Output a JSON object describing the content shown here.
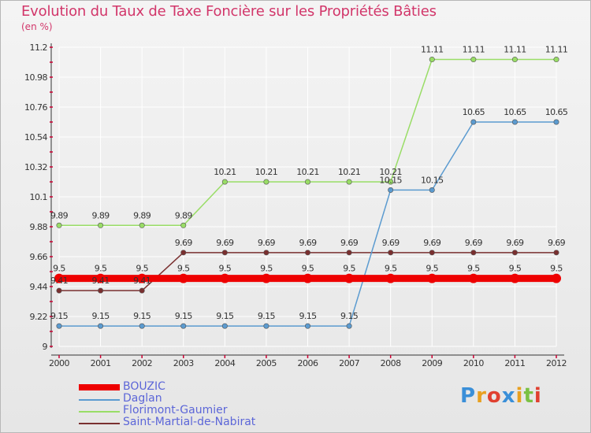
{
  "colors": {
    "title": "#d2366a",
    "legend_text": "#5c66d8",
    "axis": "#333333",
    "tick": "#cc0033",
    "grid": "#ffffff"
  },
  "chart_data": {
    "type": "line",
    "title": "Evolution du Taux de Taxe Foncière sur les Propriétés Bâties",
    "unit_label": "(en %)",
    "x": [
      "2000",
      "2001",
      "2002",
      "2003",
      "2004",
      "2005",
      "2006",
      "2007",
      "2008",
      "2009",
      "2010",
      "2011",
      "2012"
    ],
    "ylim": [
      9,
      11.2
    ],
    "yticks": [
      "9",
      "9.22",
      "9.44",
      "9.66",
      "9.88",
      "10.1",
      "10.32",
      "10.54",
      "10.76",
      "10.98",
      "11.2"
    ],
    "series": [
      {
        "name": "BOUZIC",
        "color": "#ee0000",
        "width": 9,
        "values": [
          9.5,
          9.5,
          9.5,
          9.5,
          9.5,
          9.5,
          9.5,
          9.5,
          9.5,
          9.5,
          9.5,
          9.5,
          9.5
        ],
        "labels": [
          "9.5",
          "9.5",
          "9.5",
          "9.5",
          "9.5",
          "9.5",
          "9.5",
          "9.5",
          "9.5",
          "9.5",
          "9.5",
          "9.5",
          "9.5"
        ]
      },
      {
        "name": "Daglan",
        "color": "#5b9bd0",
        "width": 1.5,
        "values": [
          9.15,
          9.15,
          9.15,
          9.15,
          9.15,
          9.15,
          9.15,
          9.15,
          10.15,
          10.15,
          10.65,
          10.65,
          10.65
        ],
        "labels": [
          "9.15",
          "9.15",
          "9.15",
          "9.15",
          "9.15",
          "9.15",
          "9.15",
          "9.15",
          "10.15",
          "10.15",
          "10.65",
          "10.65",
          "10.65"
        ]
      },
      {
        "name": "Florimont-Gaumier",
        "color": "#99dd66",
        "width": 1.5,
        "values": [
          9.89,
          9.89,
          9.89,
          9.89,
          10.21,
          10.21,
          10.21,
          10.21,
          10.21,
          11.11,
          11.11,
          11.11,
          11.11
        ],
        "labels": [
          "9.89",
          "9.89",
          "9.89",
          "9.89",
          "10.21",
          "10.21",
          "10.21",
          "10.21",
          "10.21",
          "11.11",
          "11.11",
          "11.11",
          "11.11"
        ]
      },
      {
        "name": "Saint-Martial-de-Nabirat",
        "color": "#7a3030",
        "width": 1.5,
        "values": [
          9.41,
          9.41,
          9.41,
          9.69,
          9.69,
          9.69,
          9.69,
          9.69,
          9.69,
          9.69,
          9.69,
          9.69,
          9.69
        ],
        "labels": [
          "9.41",
          "9.41",
          "9.41",
          "9.69",
          "9.69",
          "9.69",
          "9.69",
          "9.69",
          "9.69",
          "9.69",
          "9.69",
          "9.69",
          "9.69"
        ]
      }
    ]
  },
  "logo": {
    "letters": [
      "P",
      "r",
      "o",
      "x",
      "i",
      "t",
      "i"
    ],
    "colors": [
      "#3a8fd8",
      "#e8a020",
      "#e04030",
      "#3a8fd8",
      "#e8a020",
      "#7ac143",
      "#e04030"
    ]
  }
}
